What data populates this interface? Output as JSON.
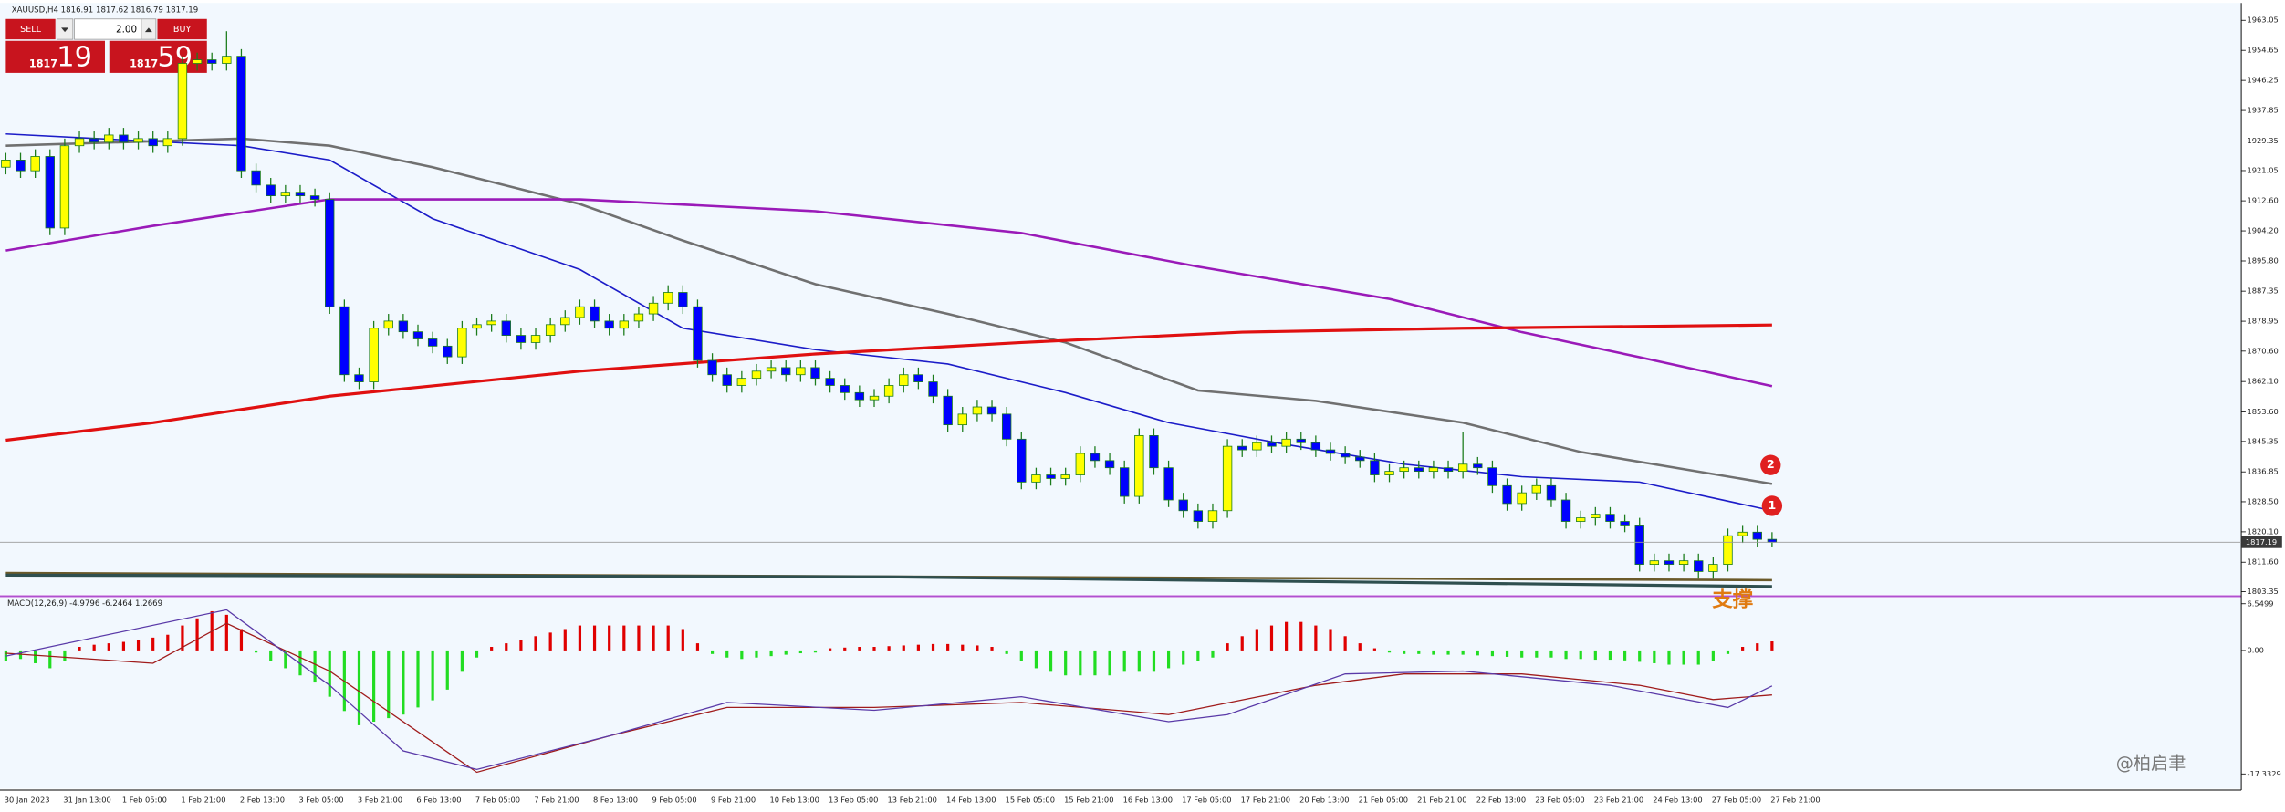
{
  "header": {
    "symbol_info": "XAUUSD,H4 1816.91 1817.62 1816.79 1817.19"
  },
  "trade_panel": {
    "sell": "SELL",
    "buy": "BUY",
    "lot": "2.00",
    "sell_price_big": "1817",
    "sell_price_pips": "19",
    "buy_price_big": "1817",
    "buy_price_pips": "59"
  },
  "watermark": "@柏启聿",
  "chart_data": [
    {
      "type": "candlestick",
      "categories": [
        "30 Jan 2023",
        null,
        null,
        null,
        "31 Jan 13:00",
        null,
        null,
        null,
        "1 Feb 05:00",
        null,
        null,
        null,
        "1 Feb 21:00",
        null,
        null,
        null,
        "2 Feb 13:00",
        null,
        null,
        null,
        "3 Feb 05:00",
        null,
        null,
        null,
        "3 Feb 21:00",
        null,
        null,
        null,
        "6 Feb 13:00",
        null,
        null,
        null,
        "7 Feb 05:00",
        null,
        null,
        null,
        "7 Feb 21:00",
        null,
        null,
        null,
        "8 Feb 13:00",
        null,
        null,
        null,
        "9 Feb 05:00",
        null,
        null,
        null,
        "9 Feb 21:00",
        null,
        null,
        null,
        "10 Feb 13:00",
        null,
        null,
        null,
        "13 Feb 05:00",
        null,
        null,
        null,
        "13 Feb 21:00",
        null,
        null,
        null,
        "14 Feb 13:00",
        null,
        null,
        null,
        "15 Feb 05:00",
        null,
        null,
        null,
        "15 Feb 21:00",
        null,
        null,
        null,
        "16 Feb 13:00",
        null,
        null,
        null,
        "17 Feb 05:00",
        null,
        null,
        null,
        "17 Feb 21:00",
        null,
        null,
        null,
        "20 Feb 13:00",
        null,
        null,
        null,
        "21 Feb 05:00",
        null,
        null,
        null,
        "21 Feb 21:00",
        null,
        null,
        null,
        "22 Feb 13:00",
        null,
        null,
        null,
        "23 Feb 05:00",
        null,
        null,
        null,
        "23 Feb 21:00",
        null,
        null,
        null,
        "24 Feb 13:00",
        null,
        null,
        null,
        "27 Feb 05:00",
        null,
        null,
        null,
        "27 Feb 21:00"
      ],
      "open": [
        1922,
        1924,
        1921,
        1925,
        1905,
        1928,
        1930,
        1929,
        1931,
        1929,
        1930,
        1928,
        1930,
        1951,
        1952,
        1951,
        1953,
        1921,
        1917,
        1914,
        1915,
        1914,
        1913,
        1883,
        1864,
        1862,
        1877,
        1879,
        1876,
        1874,
        1872,
        1869,
        1877,
        1878,
        1879,
        1875,
        1873,
        1875,
        1878,
        1880,
        1883,
        1879,
        1877,
        1879,
        1881,
        1884,
        1887,
        1883,
        1868,
        1864,
        1861,
        1863,
        1865,
        1866,
        1864,
        1866,
        1863,
        1861,
        1859,
        1857,
        1858,
        1861,
        1864,
        1862,
        1858,
        1850,
        1853,
        1855,
        1853,
        1846,
        1834,
        1836,
        1835,
        1836,
        1842,
        1840,
        1838,
        1830,
        1847,
        1838,
        1829,
        1826,
        1823,
        1826,
        1844,
        1843,
        1845,
        1844,
        1846,
        1845,
        1843,
        1842,
        1841,
        1840,
        1836,
        1837,
        1838,
        1837,
        1838,
        1837,
        1839,
        1838,
        1833,
        1828,
        1831,
        1833,
        1829,
        1823,
        1824,
        1825,
        1823,
        1822,
        1811,
        1812,
        1811,
        1812,
        1809,
        1811,
        1819,
        1820,
        1818
      ],
      "high": [
        1926,
        1926,
        1927,
        1927,
        1930,
        1932,
        1932,
        1933,
        1933,
        1932,
        1932,
        1932,
        1953,
        1954,
        1954,
        1960,
        1955,
        1923,
        1919,
        1917,
        1917,
        1916,
        1915,
        1885,
        1866,
        1879,
        1881,
        1881,
        1878,
        1876,
        1874,
        1879,
        1880,
        1881,
        1881,
        1877,
        1877,
        1880,
        1882,
        1885,
        1885,
        1881,
        1881,
        1883,
        1886,
        1889,
        1889,
        1885,
        1870,
        1866,
        1865,
        1867,
        1868,
        1868,
        1868,
        1868,
        1865,
        1863,
        1861,
        1860,
        1863,
        1866,
        1866,
        1864,
        1860,
        1855,
        1857,
        1857,
        1855,
        1848,
        1838,
        1838,
        1838,
        1844,
        1844,
        1842,
        1840,
        1849,
        1849,
        1840,
        1831,
        1828,
        1828,
        1846,
        1846,
        1847,
        1847,
        1848,
        1848,
        1847,
        1845,
        1844,
        1843,
        1842,
        1839,
        1840,
        1840,
        1840,
        1840,
        1848,
        1841,
        1840,
        1835,
        1833,
        1835,
        1835,
        1831,
        1826,
        1827,
        1827,
        1825,
        1824,
        1814,
        1814,
        1814,
        1814,
        1813,
        1821,
        1822,
        1822,
        1820
      ],
      "low": [
        1920,
        1919,
        1919,
        1903,
        1903,
        1926,
        1927,
        1927,
        1927,
        1927,
        1926,
        1926,
        1928,
        1949,
        1949,
        1949,
        1919,
        1915,
        1912,
        1912,
        1912,
        1911,
        1881,
        1862,
        1860,
        1860,
        1875,
        1874,
        1872,
        1870,
        1867,
        1867,
        1875,
        1876,
        1873,
        1871,
        1871,
        1873,
        1876,
        1878,
        1877,
        1875,
        1875,
        1877,
        1879,
        1882,
        1881,
        1866,
        1862,
        1859,
        1859,
        1861,
        1863,
        1862,
        1862,
        1861,
        1859,
        1857,
        1855,
        1855,
        1856,
        1859,
        1860,
        1856,
        1848,
        1848,
        1851,
        1851,
        1844,
        1832,
        1832,
        1833,
        1833,
        1834,
        1838,
        1836,
        1828,
        1828,
        1836,
        1827,
        1824,
        1821,
        1821,
        1824,
        1841,
        1841,
        1842,
        1842,
        1843,
        1841,
        1840,
        1839,
        1838,
        1834,
        1834,
        1835,
        1835,
        1835,
        1835,
        1835,
        1836,
        1831,
        1826,
        1826,
        1829,
        1827,
        1821,
        1821,
        1822,
        1821,
        1820,
        1809,
        1809,
        1809,
        1809,
        1807,
        1807,
        1809,
        1817,
        1816,
        1816
      ],
      "close": [
        1924,
        1921,
        1925,
        1905,
        1928,
        1930,
        1929,
        1931,
        1929,
        1930,
        1928,
        1930,
        1951,
        1952,
        1951,
        1953,
        1921,
        1917,
        1914,
        1915,
        1914,
        1913,
        1883,
        1864,
        1862,
        1877,
        1879,
        1876,
        1874,
        1872,
        1869,
        1877,
        1878,
        1879,
        1875,
        1873,
        1875,
        1878,
        1880,
        1883,
        1879,
        1877,
        1879,
        1881,
        1884,
        1887,
        1883,
        1868,
        1864,
        1861,
        1863,
        1865,
        1866,
        1864,
        1866,
        1863,
        1861,
        1859,
        1857,
        1858,
        1861,
        1864,
        1862,
        1858,
        1850,
        1853,
        1855,
        1853,
        1846,
        1834,
        1836,
        1835,
        1836,
        1842,
        1840,
        1838,
        1830,
        1847,
        1838,
        1829,
        1826,
        1823,
        1826,
        1844,
        1843,
        1845,
        1844,
        1846,
        1845,
        1843,
        1842,
        1841,
        1840,
        1836,
        1837,
        1838,
        1837,
        1838,
        1837,
        1839,
        1838,
        1833,
        1828,
        1831,
        1833,
        1829,
        1823,
        1824,
        1825,
        1823,
        1822,
        1811,
        1812,
        1811,
        1812,
        1809,
        1811,
        1819,
        1820,
        1818,
        1817.19
      ],
      "up_color": "#ffff00",
      "down_color": "#0000ff",
      "wick_color": "#1c7c1c",
      "lines": [
        {
          "color": "#1c1cc8",
          "width": 1,
          "x": [
            0,
            12,
            16,
            22,
            29,
            39,
            46,
            55,
            64,
            72,
            79,
            87,
            95,
            103,
            111,
            120
          ],
          "values": [
            1931.3,
            1928.8,
            1928,
            1924,
            1907.6,
            1893.4,
            1877,
            1871,
            1867,
            1859,
            1850.6,
            1844.5,
            1839,
            1835.5,
            1834,
            1826
          ]
        },
        {
          "color": "#707070",
          "width": 1.6,
          "x": [
            0,
            16,
            22,
            29,
            39,
            46,
            55,
            64,
            72,
            81,
            89,
            99,
            107,
            120
          ],
          "values": [
            1928,
            1930,
            1928,
            1922,
            1911.7,
            1901.5,
            1889.3,
            1881,
            1873,
            1859.6,
            1856.7,
            1850.6,
            1842.4,
            1833.5
          ]
        },
        {
          "color": "#9a1ab8",
          "width": 1.6,
          "x": [
            0,
            10,
            22,
            39,
            55,
            69,
            81,
            94,
            103,
            111,
            120
          ],
          "values": [
            1898.7,
            1905.6,
            1913,
            1913,
            1909.7,
            1903.6,
            1894.2,
            1885.2,
            1875.9,
            1868.9,
            1860.8
          ]
        },
        {
          "color": "#e01010",
          "width": 2,
          "x": [
            0,
            10,
            22,
            39,
            55,
            69,
            84,
            99,
            120
          ],
          "values": [
            1845.7,
            1850.6,
            1858,
            1865,
            1869.8,
            1873,
            1875.9,
            1877,
            1877.9
          ]
        },
        {
          "color": "#6b5a2a",
          "width": 1.6,
          "x": [
            0,
            120
          ],
          "values": [
            1808.6,
            1806.6
          ]
        },
        {
          "color": "#2f4f4f",
          "width": 2,
          "x": [
            0,
            60,
            120
          ],
          "values": [
            1808,
            1807.5,
            1804.8
          ]
        }
      ],
      "last_price": 1817.19,
      "ylim": [
        1802.5,
        1967.5
      ],
      "yticks": [
        1963.05,
        1954.65,
        1946.25,
        1937.85,
        1929.35,
        1921.05,
        {
          "value": 1912.6,
          "label": "1912.60"
        },
        {
          "value": 1904.2,
          "label": "1904.20"
        },
        {
          "value": 1895.8,
          "label": "1895.80"
        },
        1887.35,
        1878.95,
        {
          "value": 1870.6,
          "label": "1870.60"
        },
        {
          "value": 1862.1,
          "label": "1862.10"
        },
        {
          "value": 1853.6,
          "label": "1853.60"
        },
        1845.35,
        1836.85,
        {
          "value": 1828.5,
          "label": "1828.50"
        },
        {
          "value": 1820.1,
          "label": "1820.10"
        },
        {
          "value": 1811.6,
          "label": "1811.60"
        },
        1803.35
      ],
      "annotations": [
        "1",
        "2",
        "支撑"
      ]
    },
    {
      "type": "macd",
      "title": "MACD(12,26,9) -4.9796 -6.2464 1.2669",
      "histogram": [
        -1.5,
        -1.2,
        -1.8,
        -2.5,
        -1.5,
        0.5,
        0.8,
        1.0,
        1.2,
        1.5,
        1.8,
        2.2,
        3.5,
        4.5,
        5.5,
        5.0,
        3.0,
        -0.3,
        -1.5,
        -2.5,
        -3.5,
        -4.5,
        -6.5,
        -8.5,
        -10.5,
        -10.0,
        -9.5,
        -9.0,
        -8.0,
        -7.0,
        -5.5,
        -3.0,
        -1.0,
        0.5,
        1.0,
        1.5,
        2.0,
        2.5,
        3.0,
        3.5,
        3.5,
        3.5,
        3.5,
        3.5,
        3.5,
        3.5,
        3.0,
        1.0,
        -0.5,
        -1.0,
        -1.2,
        -1.0,
        -0.8,
        -0.6,
        -0.4,
        -0.3,
        0.3,
        0.4,
        0.5,
        0.5,
        0.6,
        0.7,
        0.8,
        0.9,
        0.9,
        0.8,
        0.7,
        0.5,
        -0.5,
        -1.5,
        -2.5,
        -3.0,
        -3.5,
        -3.5,
        -3.5,
        -3.5,
        -3.0,
        -3.0,
        -3.0,
        -2.5,
        -2.0,
        -1.5,
        -1.0,
        1.0,
        2.0,
        3.0,
        3.5,
        4.0,
        4.0,
        3.5,
        3.0,
        2.0,
        1.0,
        0.3,
        -0.3,
        -0.5,
        -0.5,
        -0.6,
        -0.6,
        -0.6,
        -0.7,
        -0.8,
        -0.9,
        -1.0,
        -1.0,
        -1.0,
        -1.2,
        -1.2,
        -1.3,
        -1.3,
        -1.4,
        -1.6,
        -1.8,
        -2.0,
        -2.0,
        -2.0,
        -1.5,
        -0.5,
        0.5,
        1.0,
        1.2669
      ],
      "hist_up_color": "#e00000",
      "hist_down_color": "#22dd22",
      "lines": [
        {
          "color": "#a01c1c",
          "width": 0.8,
          "x": [
            0,
            10,
            15,
            22,
            32,
            41,
            49,
            59,
            69,
            79,
            89,
            95,
            103,
            111,
            116,
            120
          ],
          "values": [
            -0.4,
            -1.8,
            3.8,
            -2.9,
            -17.1,
            -12,
            -8,
            -8,
            -7.3,
            -9,
            -4.9,
            -3.3,
            -3.3,
            -4.9,
            -6.9,
            -6.2464
          ]
        },
        {
          "color": "#5a3aa8",
          "width": 0.8,
          "x": [
            0,
            15,
            22,
            27,
            32,
            41,
            49,
            59,
            69,
            79,
            83,
            91,
            99,
            109,
            117,
            120
          ],
          "values": [
            -0.8,
            5.7,
            -4.9,
            -14.1,
            -16.7,
            -12,
            -7.3,
            -8.4,
            -6.5,
            -10,
            -9,
            -3.3,
            -2.9,
            -4.9,
            -8,
            -4.9796
          ]
        }
      ],
      "ylim": [
        -19.4,
        7.4
      ],
      "yticks": [
        6.5499,
        {
          "value": 0,
          "label": "0.00"
        },
        -17.3329
      ]
    }
  ]
}
